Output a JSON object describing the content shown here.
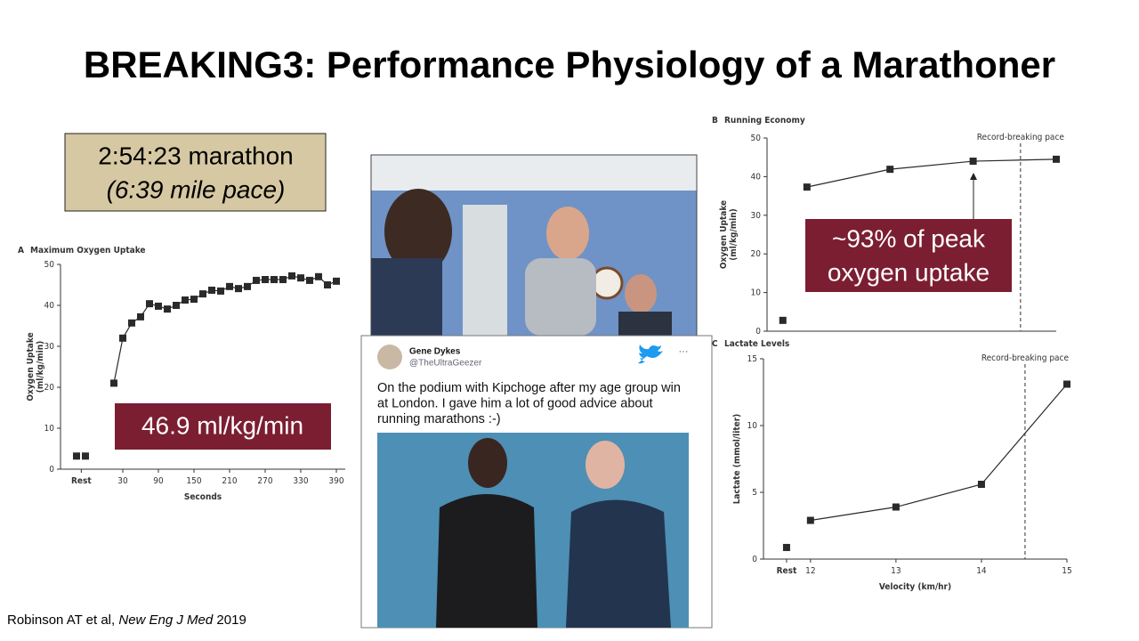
{
  "title": "BREAKING3: Performance Physiology of a Marathoner",
  "race_box": {
    "time": "2:54:23 marathon",
    "pace": "(6:39 mile pace)"
  },
  "vo2_box": "46.9 ml/kg/min",
  "economy_box": [
    "~93% of peak",
    "oxygen uptake"
  ],
  "tweet": {
    "name": "Gene Dykes",
    "handle": "@TheUltraGeezer",
    "more": "···",
    "text": [
      "On the podium with Kipchoge after my age group win",
      "at London. I gave him a lot of good advice about",
      "running marathons :-)"
    ]
  },
  "citation": {
    "authors": "Robinson AT et al, ",
    "journal": "New Eng J Med",
    "year": " 2019"
  },
  "chart_data": [
    {
      "type": "scatter",
      "panel": "A",
      "title": "Maximum Oxygen Uptake",
      "xlabel": "Seconds",
      "ylabel": [
        "Oxygen Uptake",
        "(ml/kg/min)"
      ],
      "xlim": [
        -75,
        405
      ],
      "ylim": [
        0,
        50
      ],
      "xticks": [
        {
          "value": -40,
          "label": "Rest"
        },
        30,
        90,
        150,
        210,
        270,
        330,
        390
      ],
      "yticks": [
        0,
        10,
        20,
        30,
        40,
        50
      ],
      "series": [
        {
          "color": "#2a2a2a",
          "line": false,
          "x": [
            -48,
            -33
          ],
          "values": [
            3.2,
            3.2
          ]
        },
        {
          "color": "#2a2a2a",
          "line": true,
          "x": [
            15,
            30,
            45,
            60,
            75,
            90,
            105,
            120,
            135,
            150,
            165,
            180,
            195,
            210,
            225,
            240,
            255,
            270,
            285,
            300,
            315,
            330,
            345,
            360,
            375,
            390
          ],
          "values": [
            21,
            32,
            35.7,
            37.2,
            40.4,
            39.8,
            39.1,
            40,
            41.3,
            41.5,
            42.8,
            43.7,
            43.5,
            44.6,
            44.1,
            44.6,
            46.1,
            46.3,
            46.3,
            46.3,
            47.2,
            46.7,
            46.1,
            47,
            45,
            45.9
          ]
        }
      ]
    },
    {
      "type": "scatter",
      "panel": "B",
      "title": "Running Economy",
      "ylabel": [
        "Oxygen Uptake",
        "(ml/kg/min)"
      ],
      "xlim": [
        11.52,
        15
      ],
      "ylim": [
        0,
        50
      ],
      "yticks": [
        0,
        10,
        20,
        30,
        40,
        50
      ],
      "vline": {
        "value": 14.57,
        "label": "Record-breaking pace"
      },
      "series": [
        {
          "color": "#2a2a2a",
          "line": false,
          "x": [
            11.71
          ],
          "values": [
            2.8
          ]
        },
        {
          "color": "#2a2a2a",
          "line": true,
          "x": [
            12,
            13,
            14,
            15
          ],
          "values": [
            37.3,
            41.9,
            44,
            44.5
          ]
        }
      ]
    },
    {
      "type": "scatter",
      "panel": "C",
      "title": "Lactate Levels",
      "xlabel": "Velocity (km/hr)",
      "ylabel": [
        "Lactate (mmol/liter)"
      ],
      "xlim": [
        11.45,
        15
      ],
      "ylim": [
        0,
        15
      ],
      "xticks": [
        {
          "value": 11.72,
          "label": "Rest"
        },
        12,
        13,
        14,
        15
      ],
      "yticks": [
        0,
        5,
        10,
        15
      ],
      "vline": {
        "value": 14.51,
        "label": "Record-breaking pace"
      },
      "series": [
        {
          "color": "#2a2a2a",
          "line": false,
          "x": [
            11.72
          ],
          "values": [
            0.87
          ]
        },
        {
          "color": "#2a2a2a",
          "line": true,
          "x": [
            12,
            13,
            14,
            15
          ],
          "values": [
            2.9,
            3.9,
            5.6,
            13.1
          ]
        }
      ]
    }
  ]
}
